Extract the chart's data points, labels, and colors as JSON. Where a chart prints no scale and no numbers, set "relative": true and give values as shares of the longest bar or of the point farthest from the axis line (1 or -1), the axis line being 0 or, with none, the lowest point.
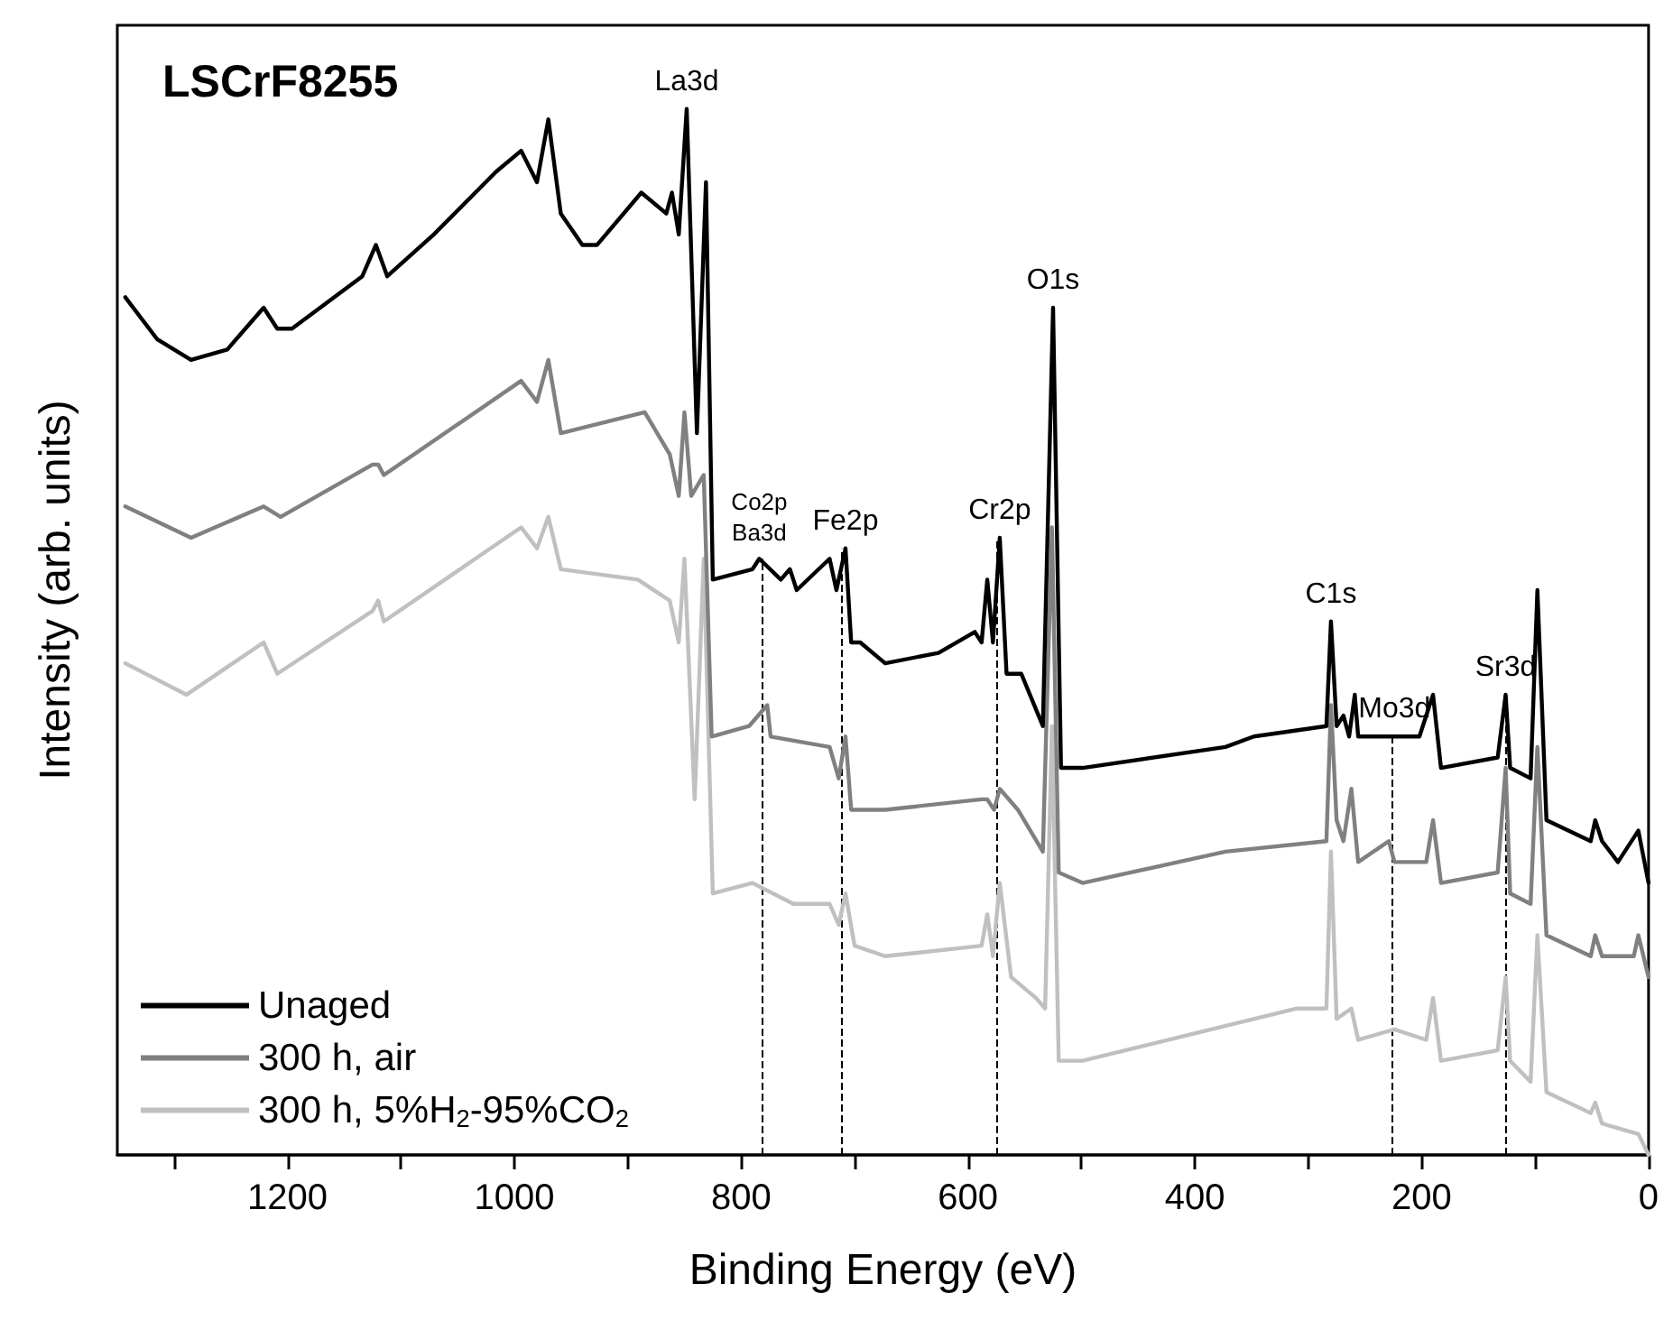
{
  "chart_data": {
    "type": "line",
    "title": "LSCrF8255",
    "xlabel": "Binding Energy (eV)",
    "ylabel": "Intensity (arb. units)",
    "relative": true,
    "xlim": [
      1350,
      0
    ],
    "xticks": [
      {
        "value": 1300,
        "label": null
      },
      1200,
      {
        "value": 1100,
        "label": null
      },
      1000,
      {
        "value": 900,
        "label": null
      },
      800,
      {
        "value": 700,
        "label": null
      },
      600,
      {
        "value": 500,
        "label": null
      },
      400,
      {
        "value": 300,
        "label": null
      },
      200,
      {
        "value": 100,
        "label": null
      },
      0
    ],
    "tick_labels": "x",
    "grid": false,
    "legend": "bottom left",
    "marker": "none",
    "line_style": "solid",
    "series": [
      {
        "name": "Unaged",
        "color": "#000000",
        "x": [
          1343,
          1315,
          1285,
          1253,
          1221,
          1209,
          1196,
          1134,
          1122,
          1112,
          1071,
          1016,
          994,
          980,
          970,
          959,
          940,
          927,
          888,
          866,
          861,
          855,
          848,
          839,
          831,
          825,
          790,
          784,
          765,
          757,
          751,
          722,
          716,
          708,
          703,
          695,
          673,
          626,
          594,
          588,
          583,
          578,
          572,
          566,
          553,
          534,
          525,
          518,
          499,
          373,
          348,
          284,
          280,
          275,
          269,
          264,
          259,
          256,
          224,
          202,
          190,
          183,
          133,
          126,
          122,
          104,
          98,
          90,
          51,
          47,
          41,
          27,
          9,
          0
        ],
        "values": [
          0.82,
          0.78,
          0.76,
          0.77,
          0.81,
          0.79,
          0.79,
          0.84,
          0.87,
          0.84,
          0.88,
          0.94,
          0.96,
          0.93,
          0.99,
          0.9,
          0.87,
          0.87,
          0.92,
          0.9,
          0.92,
          0.88,
          1.0,
          0.69,
          0.93,
          0.55,
          0.56,
          0.57,
          0.55,
          0.56,
          0.54,
          0.57,
          0.54,
          0.58,
          0.49,
          0.49,
          0.47,
          0.48,
          0.5,
          0.49,
          0.55,
          0.49,
          0.59,
          0.46,
          0.46,
          0.41,
          0.81,
          0.37,
          0.37,
          0.39,
          0.4,
          0.41,
          0.51,
          0.41,
          0.42,
          0.4,
          0.44,
          0.4,
          0.4,
          0.4,
          0.44,
          0.37,
          0.38,
          0.44,
          0.37,
          0.36,
          0.54,
          0.32,
          0.3,
          0.32,
          0.3,
          0.28,
          0.31,
          0.26
        ]
      },
      {
        "name": "300 h, air",
        "color": "#808080",
        "x": [
          1343,
          1285,
          1221,
          1206,
          1125,
          1120,
          1115,
          994,
          980,
          970,
          959,
          885,
          863,
          855,
          850,
          844,
          833,
          826,
          793,
          777,
          774,
          722,
          714,
          708,
          703,
          673,
          588,
          583,
          577,
          572,
          556,
          534,
          526,
          520,
          499,
          373,
          284,
          280,
          275,
          269,
          262,
          256,
          229,
          224,
          196,
          190,
          183,
          133,
          126,
          122,
          104,
          98,
          90,
          51,
          47,
          41,
          13,
          9,
          0
        ],
        "values": [
          0.62,
          0.59,
          0.62,
          0.61,
          0.66,
          0.66,
          0.65,
          0.74,
          0.72,
          0.76,
          0.69,
          0.71,
          0.67,
          0.63,
          0.71,
          0.63,
          0.65,
          0.4,
          0.41,
          0.43,
          0.4,
          0.39,
          0.36,
          0.4,
          0.33,
          0.33,
          0.34,
          0.34,
          0.33,
          0.35,
          0.33,
          0.29,
          0.6,
          0.27,
          0.26,
          0.29,
          0.3,
          0.43,
          0.32,
          0.3,
          0.35,
          0.28,
          0.3,
          0.28,
          0.28,
          0.32,
          0.26,
          0.27,
          0.37,
          0.25,
          0.24,
          0.39,
          0.21,
          0.19,
          0.21,
          0.19,
          0.19,
          0.21,
          0.17
        ]
      },
      {
        "name": "300 h, 5%H$_{2}$-95%CO$_{2}$",
        "color": "#c0c0c0",
        "x": [
          1343,
          1289,
          1221,
          1209,
          1125,
          1120,
          1115,
          994,
          980,
          970,
          959,
          891,
          863,
          855,
          850,
          841,
          833,
          825,
          790,
          754,
          722,
          714,
          708,
          700,
          673,
          588,
          583,
          578,
          572,
          562,
          540,
          532,
          526,
          520,
          499,
          310,
          284,
          280,
          275,
          262,
          256,
          224,
          196,
          190,
          183,
          133,
          126,
          122,
          104,
          98,
          90,
          51,
          47,
          41,
          9,
          0
        ],
        "values": [
          0.47,
          0.44,
          0.49,
          0.46,
          0.52,
          0.53,
          0.51,
          0.6,
          0.58,
          0.61,
          0.56,
          0.55,
          0.53,
          0.49,
          0.57,
          0.34,
          0.57,
          0.25,
          0.26,
          0.24,
          0.24,
          0.22,
          0.25,
          0.2,
          0.19,
          0.2,
          0.23,
          0.19,
          0.26,
          0.17,
          0.15,
          0.14,
          0.41,
          0.09,
          0.09,
          0.14,
          0.14,
          0.29,
          0.13,
          0.14,
          0.11,
          0.12,
          0.11,
          0.15,
          0.09,
          0.1,
          0.17,
          0.09,
          0.07,
          0.21,
          0.06,
          0.04,
          0.05,
          0.03,
          0.02,
          0.0
        ]
      }
    ],
    "ref_lines": [
      {
        "axis": "x",
        "value": 782,
        "line_style": "dashed",
        "color": "#000000"
      },
      {
        "axis": "x",
        "value": 711,
        "line_style": "dashed",
        "color": "#000000"
      },
      {
        "axis": "x",
        "value": 574,
        "line_style": "dashed",
        "color": "#000000"
      },
      {
        "axis": "x",
        "value": 226,
        "line_style": "dashed",
        "color": "#000000"
      },
      {
        "axis": "x",
        "value": 126,
        "line_style": "dashed",
        "color": "#000000"
      }
    ],
    "annotations": [
      {
        "text": "La3d",
        "x": 848,
        "y": 1.0
      },
      {
        "text": "Co2p\nBa3d",
        "x": 784,
        "y": 0.57
      },
      {
        "text": "Fe2p",
        "x": 708,
        "y": 0.58
      },
      {
        "text": "Cr2p",
        "x": 572,
        "y": 0.59
      },
      {
        "text": "O1s",
        "x": 525,
        "y": 0.81
      },
      {
        "text": "C1s",
        "x": 280,
        "y": 0.51
      },
      {
        "text": "Mo3d",
        "x": 224,
        "y": 0.4
      },
      {
        "text": "Sr3d",
        "x": 126,
        "y": 0.44
      }
    ]
  }
}
